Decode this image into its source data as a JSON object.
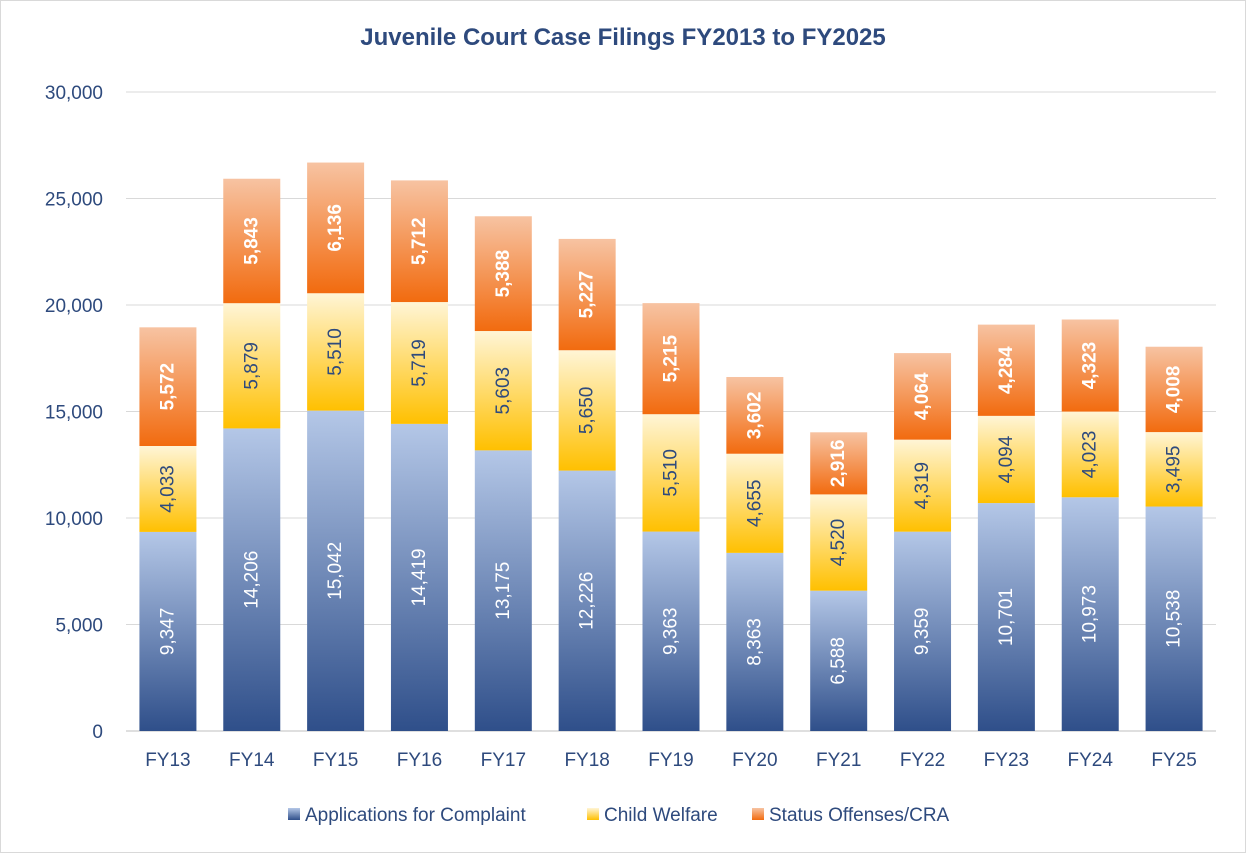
{
  "chart_data": {
    "type": "bar",
    "stacked": true,
    "title": "Juvenile Court Case Filings FY2013 to FY2025",
    "xlabel": "",
    "ylabel": "",
    "ylim": [
      0,
      30000
    ],
    "y_ticks": [
      0,
      5000,
      10000,
      15000,
      20000,
      25000,
      30000
    ],
    "y_tick_labels": [
      "0",
      "5,000",
      "10,000",
      "15,000",
      "20,000",
      "25,000",
      "30,000"
    ],
    "grid": true,
    "legend_position": "bottom",
    "categories": [
      "FY13",
      "FY14",
      "FY15",
      "FY16",
      "FY17",
      "FY18",
      "FY19",
      "FY20",
      "FY21",
      "FY22",
      "FY23",
      "FY24",
      "FY25"
    ],
    "series": [
      {
        "name": "Applications for Complaint",
        "color_dark": "#2F4F8A",
        "color_light": "#B4C7E7",
        "label_color": "#ffffff",
        "label_bold": false,
        "values": [
          9347,
          14206,
          15042,
          14419,
          13175,
          12226,
          9363,
          8363,
          6588,
          9359,
          10701,
          10973,
          10538
        ],
        "labels": [
          "9,347",
          "14,206",
          "15,042",
          "14,419",
          "13,175",
          "12,226",
          "9,363",
          "8,363",
          "6,588",
          "9,359",
          "10,701",
          "10,973",
          "10,538"
        ]
      },
      {
        "name": "Child Welfare",
        "color_dark": "#FFC000",
        "color_light": "#FFF5D6",
        "label_color": "#2E4A7D",
        "label_bold": false,
        "values": [
          4033,
          5879,
          5510,
          5719,
          5603,
          5650,
          5510,
          4655,
          4520,
          4319,
          4094,
          4023,
          3495
        ],
        "labels": [
          "4,033",
          "5,879",
          "5,510",
          "5,719",
          "5,603",
          "5,650",
          "5,510",
          "4,655",
          "4,520",
          "4,319",
          "4,094",
          "4,023",
          "3,495"
        ]
      },
      {
        "name": "Status Offenses/CRA",
        "color_dark": "#F26B0F",
        "color_light": "#F7C3A2",
        "label_color": "#ffffff",
        "label_bold": true,
        "values": [
          5572,
          5843,
          6136,
          5712,
          5388,
          5227,
          5215,
          3602,
          2916,
          4064,
          4284,
          4323,
          4008
        ],
        "labels": [
          "5,572",
          "5,843",
          "6,136",
          "5,712",
          "5,388",
          "5,227",
          "5,215",
          "3,602",
          "2,916",
          "4,064",
          "4,284",
          "4,323",
          "4,008"
        ]
      }
    ]
  }
}
